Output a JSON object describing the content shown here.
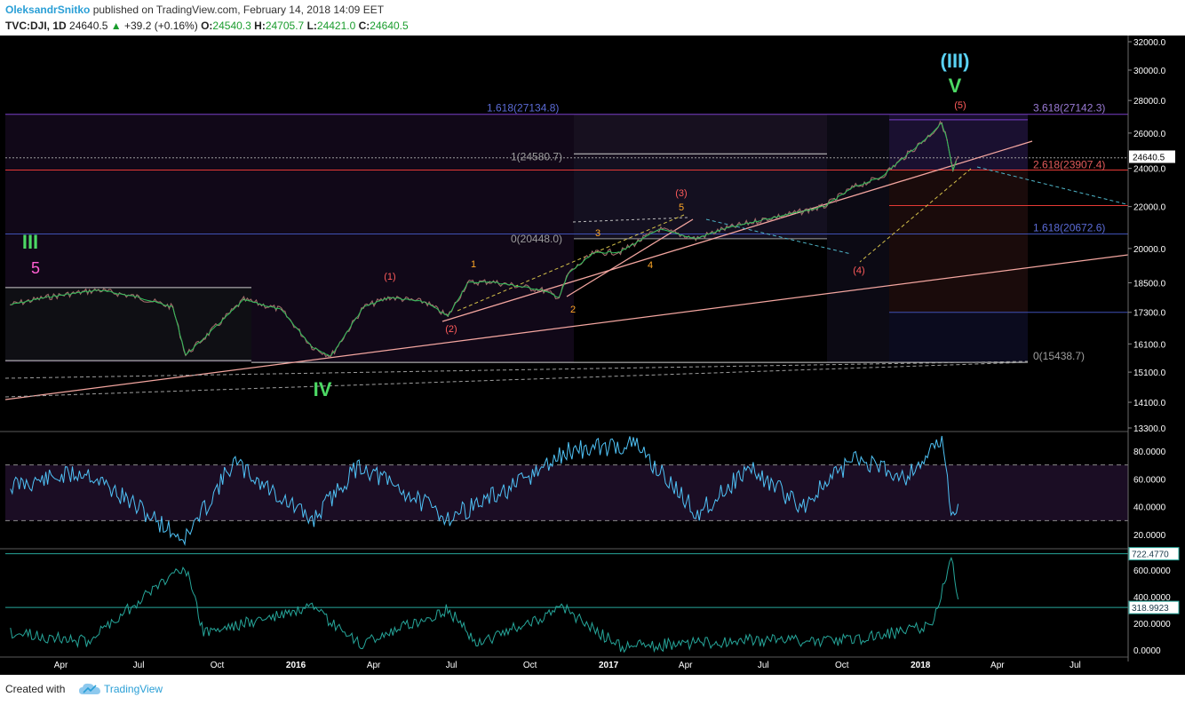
{
  "header": {
    "author": "OleksandrSnitko",
    "published": " published on TradingView.com, February 14, 2018 14:09 EET",
    "symbol": "TVC:DJI, 1D",
    "last": "24640.5",
    "change": "+39.2 (+0.16%)",
    "o_label": "O:",
    "o_value": "24540.3",
    "h_label": "H:",
    "h_value": "24705.7",
    "l_label": "L:",
    "l_value": "24421.0",
    "c_label": "C:",
    "c_value": "24640.5"
  },
  "footer": {
    "created_with": "Created with",
    "brand": "TradingView"
  },
  "colors": {
    "background": "#000000",
    "price_line": "#7a7a7a",
    "price_ma": "#2fbf5a",
    "rsi": "#4fc3f7",
    "atr": "#26a69a",
    "trendline": "#f4a6a0",
    "fib_purple": "#7b3fc9",
    "fib_red": "#e53935",
    "fib_blue": "#3f51b5",
    "wave_green": "#4cd964",
    "wave_cyan": "#5ad2f4",
    "wave_red": "#ff5b5b",
    "wave_orange": "#ffa726",
    "wave_magenta": "#ff5fd2"
  },
  "chart_data": [
    {
      "type": "line",
      "panel": "price",
      "x_ticks": [
        "Apr",
        "Jul",
        "Oct",
        "2016",
        "Apr",
        "Jul",
        "Oct",
        "2017",
        "Apr",
        "Jul",
        "Oct",
        "2018",
        "Apr",
        "Jul"
      ],
      "y_ticks": [
        "32000.0",
        "30000.0",
        "28000.0",
        "26000.0",
        "24000.0",
        "22000.0",
        "20000.0",
        "18500.0",
        "17300.0",
        "16100.0",
        "15100.0",
        "14100.0",
        "13300.0"
      ],
      "y_tick_values": [
        32000,
        30000,
        28000,
        26000,
        24000,
        22000,
        20000,
        18500,
        17300,
        16100,
        15100,
        14100,
        13300
      ],
      "last_price_label": "24640.5",
      "series": [
        {
          "x": [
            "2015-02-01",
            "2015-03-15",
            "2015-05-15",
            "2015-07-01",
            "2015-08-10",
            "2015-08-25",
            "2015-09-15",
            "2015-11-01",
            "2015-12-15",
            "2016-01-20",
            "2016-02-11",
            "2016-03-20",
            "2016-04-20",
            "2016-06-01",
            "2016-06-27",
            "2016-07-20",
            "2016-08-15",
            "2016-10-15",
            "2016-11-04",
            "2016-11-15",
            "2016-12-15",
            "2017-01-15",
            "2017-03-01",
            "2017-04-13",
            "2017-05-15",
            "2017-06-30",
            "2017-08-15",
            "2017-09-10",
            "2017-10-15",
            "2017-11-15",
            "2017-12-15",
            "2018-01-10",
            "2018-01-26",
            "2018-02-01",
            "2018-02-06",
            "2018-02-08",
            "2018-02-14"
          ],
          "y": [
            17600,
            17900,
            18200,
            17900,
            17500,
            15700,
            16300,
            17800,
            17400,
            16000,
            15660,
            17500,
            17900,
            17700,
            17140,
            18500,
            18550,
            18200,
            17900,
            18900,
            19800,
            19850,
            20900,
            20450,
            20900,
            21350,
            21750,
            22000,
            23000,
            23500,
            24700,
            25800,
            26616,
            25600,
            24300,
            23860,
            24640.5
          ]
        }
      ],
      "fib_levels": [
        {
          "label": "1.618(27134.8)",
          "value": 27134.8
        },
        {
          "label": "1(24580.7)",
          "value": 24580.7
        },
        {
          "label": "0(20448.0)",
          "value": 20448.0
        },
        {
          "label": "3.618(27142.3)",
          "value": 27142.3
        },
        {
          "label": "2.618(23907.4)",
          "value": 23907.4
        },
        {
          "label": "1.618(20672.6)",
          "value": 20672.6
        },
        {
          "label": "0(15438.7)",
          "value": 15438.7
        }
      ],
      "wave_labels": [
        {
          "text": "III",
          "color": "green"
        },
        {
          "text": "5",
          "color": "magenta"
        },
        {
          "text": "IV",
          "color": "green"
        },
        {
          "text": "(III)",
          "color": "cyan"
        },
        {
          "text": "V",
          "color": "green"
        },
        {
          "text": "(1)",
          "color": "red"
        },
        {
          "text": "(2)",
          "color": "red"
        },
        {
          "text": "(3)",
          "color": "red"
        },
        {
          "text": "(4)",
          "color": "red"
        },
        {
          "text": "(5)",
          "color": "red"
        },
        {
          "text": "1",
          "color": "orange"
        },
        {
          "text": "2",
          "color": "orange"
        },
        {
          "text": "3",
          "color": "orange"
        },
        {
          "text": "4",
          "color": "orange"
        },
        {
          "text": "5",
          "color": "orange"
        }
      ]
    },
    {
      "type": "line",
      "panel": "rsi",
      "y_ticks": [
        "80.0000",
        "60.0000",
        "40.0000",
        "20.0000"
      ],
      "y_tick_values": [
        80,
        60,
        40,
        20
      ],
      "bands": [
        70,
        30
      ],
      "series": [
        {
          "x": [
            "2015-02-01",
            "2015-05-01",
            "2015-08-24",
            "2015-10-20",
            "2016-01-20",
            "2016-03-15",
            "2016-06-27",
            "2016-09-15",
            "2016-11-15",
            "2017-02-01",
            "2017-04-15",
            "2017-06-15",
            "2017-08-15",
            "2017-10-15",
            "2017-12-15",
            "2018-01-26",
            "2018-02-08",
            "2018-02-14"
          ],
          "y": [
            55,
            65,
            16,
            72,
            30,
            70,
            32,
            55,
            80,
            85,
            35,
            68,
            40,
            75,
            62,
            88,
            30,
            42
          ]
        }
      ]
    },
    {
      "type": "line",
      "panel": "atr",
      "y_ticks": [
        "600.0000",
        "400.0000",
        "200.0000",
        "0.0000"
      ],
      "y_tick_values": [
        600,
        400,
        200,
        0
      ],
      "value_labels": [
        "722.4770",
        "318.9923"
      ],
      "levels": [
        722.477,
        318.9923
      ],
      "series": [
        {
          "x": [
            "2015-02-01",
            "2015-05-01",
            "2015-08-24",
            "2015-09-15",
            "2016-01-20",
            "2016-03-15",
            "2016-06-27",
            "2016-08-01",
            "2016-11-09",
            "2017-01-15",
            "2017-06-15",
            "2017-10-15",
            "2018-01-15",
            "2018-02-06",
            "2018-02-14"
          ],
          "y": [
            150,
            80,
            660,
            150,
            330,
            60,
            320,
            70,
            330,
            40,
            90,
            90,
            200,
            722,
            380
          ]
        }
      ]
    }
  ]
}
